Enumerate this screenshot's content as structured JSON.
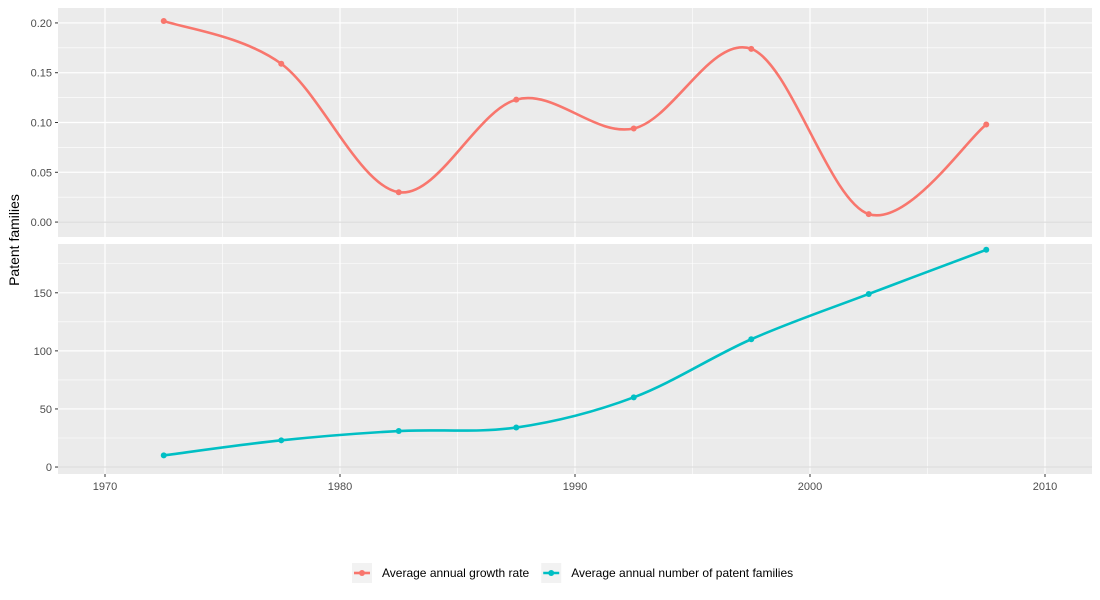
{
  "chart_data": {
    "type": "line",
    "ylabel": "Patent families",
    "x_ticks": [
      1970,
      1980,
      1990,
      2000,
      2010
    ],
    "xlim": [
      1968.0,
      2012.0
    ],
    "panels": [
      {
        "series_name": "Average annual growth rate",
        "color": "#F8766D",
        "ylim": [
          -0.015,
          0.215
        ],
        "y_ticks": [
          "0.00",
          "0.05",
          "0.10",
          "0.15",
          "0.20"
        ],
        "y_tick_values": [
          0.0,
          0.05,
          0.1,
          0.15,
          0.2
        ],
        "x": [
          1972.5,
          1977.5,
          1982.5,
          1987.5,
          1992.5,
          1997.5,
          2002.5,
          2007.5
        ],
        "values": [
          0.202,
          0.159,
          0.03,
          0.123,
          0.094,
          0.174,
          0.008,
          0.098
        ]
      },
      {
        "series_name": "Average annual number of patent families",
        "color": "#00BFC4",
        "ylim": [
          -6,
          192
        ],
        "y_ticks": [
          "0",
          "50",
          "100",
          "150"
        ],
        "y_tick_values": [
          0,
          50,
          100,
          150
        ],
        "x": [
          1972.5,
          1977.5,
          1982.5,
          1987.5,
          1992.5,
          1997.5,
          2002.5,
          2007.5
        ],
        "values": [
          10,
          23,
          31,
          34,
          60,
          110,
          149,
          187
        ]
      }
    ],
    "legend": {
      "position": "bottom",
      "entries": [
        "Average annual growth rate",
        "Average annual number of patent families"
      ]
    },
    "grid": true
  }
}
